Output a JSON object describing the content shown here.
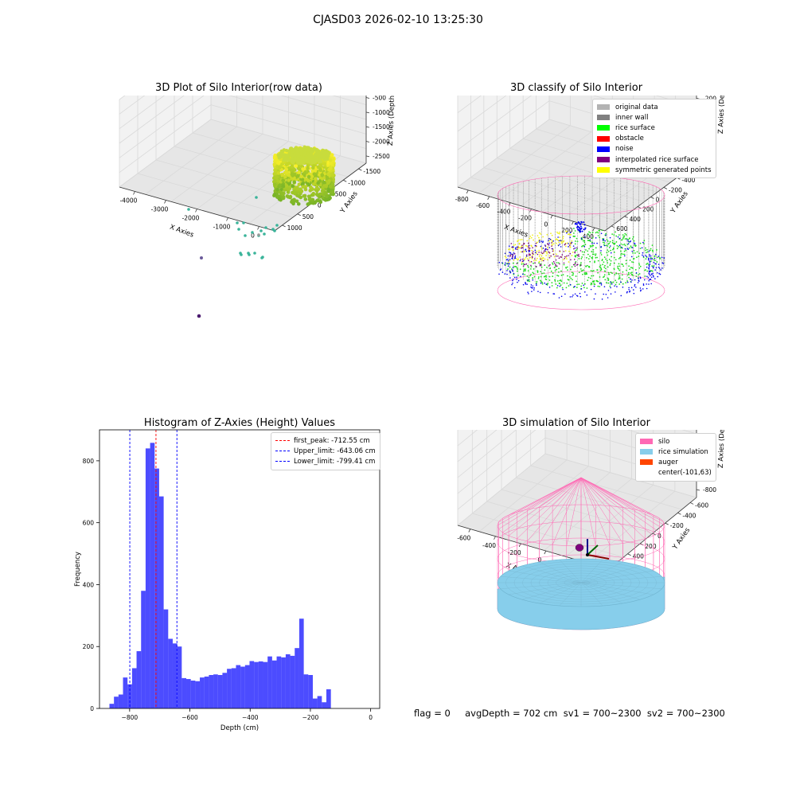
{
  "suptitle": "CJASD03 2026-02-10 13:25:30",
  "footer": "flag = 0     avgDepth = 702 cm  sv1 = 700~2300  sv2 = 700~2300",
  "colors": {
    "hist_bar": "#0000ff",
    "peak_line": "#ff0000",
    "limit_line": "#0000ff",
    "silo_wire": "#ff69b4",
    "rice_sim": "#87ceeb",
    "inner_wall": "#808080",
    "rice_surface": "#00ff00",
    "noise": "#0000ff"
  },
  "panels": {
    "raw": {
      "title": "3D Plot of Silo Interior(row data)",
      "xlabel": "X Axies",
      "ylabel": "Y Axies",
      "zlabel": "Z Axies (Depth)",
      "xticks": [
        "-4000",
        "-3000",
        "-2000",
        "-1000",
        "0"
      ],
      "yticks": [
        "1000",
        "500",
        "0",
        "-500",
        "-1000",
        "-1500"
      ],
      "zticks": [
        "0",
        "-500",
        "-1000",
        "-1500",
        "-2000",
        "-2500"
      ]
    },
    "classify": {
      "title": "3D classify of Silo Interior",
      "xlabel": "X Axies",
      "ylabel": "Y Axies",
      "zlabel": "Z Axies (Depth)",
      "xticks": [
        "-800",
        "-600",
        "-400",
        "-200",
        "0",
        "200",
        "400"
      ],
      "yticks": [
        "600",
        "400",
        "200",
        "0",
        "-200",
        "-400",
        "-600"
      ],
      "zticks": [
        "200",
        "0",
        "-200",
        "-400",
        "-600",
        "-800"
      ],
      "legend": [
        {
          "label": "original data",
          "color": "#b3b3b3"
        },
        {
          "label": "inner wall",
          "color": "#808080"
        },
        {
          "label": "rice surface",
          "color": "#00ff00"
        },
        {
          "label": "obstacle",
          "color": "#ff0000"
        },
        {
          "label": "noise",
          "color": "#0000ff"
        },
        {
          "label": "interpolated rice surface",
          "color": "#800080"
        },
        {
          "label": "symmetric generated points",
          "color": "#ffff00"
        }
      ]
    },
    "simulation": {
      "title": "3D simulation of Silo Interior",
      "xlabel": "X Axies",
      "ylabel": "Y Axies",
      "zlabel": "Z Axies (Depth)",
      "xticks": [
        "-600",
        "-400",
        "-200",
        "0",
        "200",
        "400"
      ],
      "yticks": [
        "600",
        "400",
        "200",
        "0",
        "-200",
        "-400",
        "-600"
      ],
      "zticks": [
        "400",
        "200",
        "0",
        "-200",
        "-400",
        "-600",
        "-800"
      ],
      "legend": [
        {
          "label": "silo",
          "color": "#ff69b4"
        },
        {
          "label": "rice simulation",
          "color": "#87ceeb"
        },
        {
          "label": "auger",
          "color": "#ff4500"
        },
        {
          "label": "center(-101,63)",
          "color": ""
        }
      ]
    }
  },
  "chart_data": {
    "type": "bar",
    "title": "Histogram of Z-Axies (Height) Values",
    "xlabel": "Depth (cm)",
    "ylabel": "Frequency",
    "xlim": [
      -900,
      30
    ],
    "ylim": [
      0,
      900
    ],
    "xticks": [
      -800,
      -600,
      -400,
      -200,
      0
    ],
    "yticks": [
      0,
      200,
      400,
      600,
      800
    ],
    "bin_width": 15,
    "bin_start": -867,
    "values": [
      15,
      38,
      45,
      100,
      78,
      130,
      185,
      380,
      840,
      858,
      775,
      685,
      320,
      225,
      210,
      200,
      98,
      95,
      90,
      88,
      100,
      103,
      108,
      110,
      108,
      115,
      128,
      130,
      140,
      135,
      140,
      153,
      150,
      152,
      150,
      168,
      155,
      168,
      165,
      175,
      170,
      195,
      290,
      110,
      108,
      32,
      40,
      20,
      62
    ],
    "vlines": [
      {
        "name": "first_peak: -712.55 cm",
        "x": -712.55,
        "color": "#ff0000"
      },
      {
        "name": "Upper_limit: -643.06 cm",
        "x": -643.06,
        "color": "#0000ff"
      },
      {
        "name": "Lower_limit: -799.41 cm",
        "x": -799.41,
        "color": "#0000ff"
      }
    ],
    "legend_loc": "upper right"
  }
}
